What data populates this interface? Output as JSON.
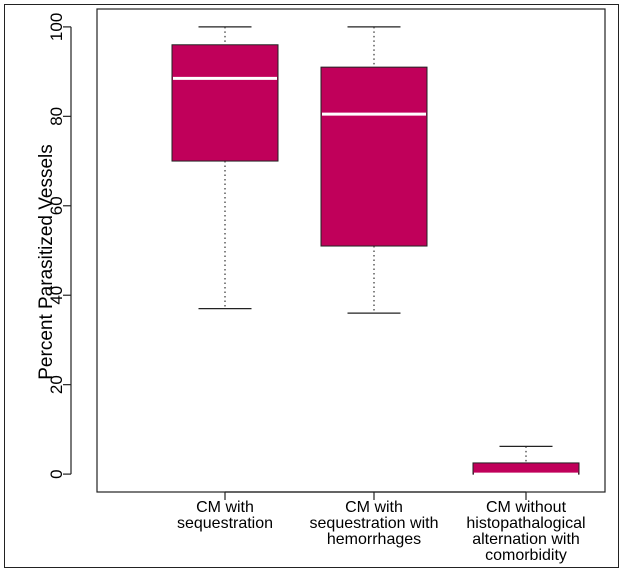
{
  "chart_data": {
    "type": "box",
    "title": "",
    "xlabel": "",
    "ylabel": "Percent Parasitized Vessels",
    "ylim": [
      -4,
      104
    ],
    "yticks": [
      0,
      20,
      40,
      60,
      80,
      100
    ],
    "ytick_labels": [
      "0",
      "20",
      "40",
      "60",
      "80",
      "100"
    ],
    "grid": false,
    "legend": "none",
    "box_color": "#C0005A",
    "median_color": "#ffffff",
    "categories": [
      [
        "CM with",
        "sequestration"
      ],
      [
        "CM with",
        "sequestration with",
        "hemorrhages"
      ],
      [
        "CM without",
        "histopathalogical",
        "alternation with",
        "comorbidity"
      ]
    ],
    "boxes": [
      {
        "min": 37,
        "q1": 70,
        "median": 88.5,
        "q3": 96,
        "max": 100
      },
      {
        "min": 36,
        "q1": 51,
        "median": 80.5,
        "q3": 91,
        "max": 100
      },
      {
        "min": 0,
        "q1": 0,
        "median": 0,
        "q3": 2.5,
        "max": 6.2
      }
    ]
  }
}
